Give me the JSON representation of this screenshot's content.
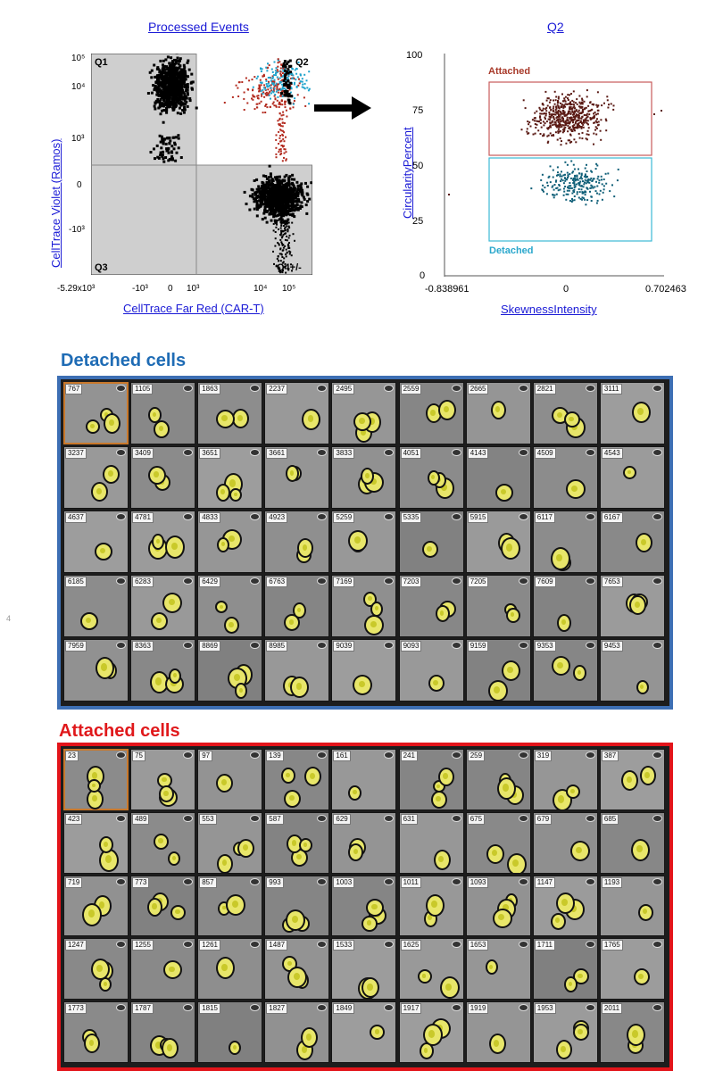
{
  "scatter_left": {
    "title": "Processed Events",
    "y_axis_label": "CellTrace Violet (Ramos)",
    "x_axis_label": "CellTrace Far Red (CAR-T)",
    "y_ticks": [
      "10⁵",
      "10⁴",
      "10³",
      "0",
      "-10³"
    ],
    "x_ticks": [
      "-5.29x10³",
      "-10³",
      "0",
      "10³",
      "10⁴",
      "10⁵"
    ],
    "quadrants": [
      "Q1",
      "Q2",
      "Q3",
      "Q4+/-"
    ],
    "colors": {
      "background": "#cfcfcf",
      "q2_background": "#ffffff",
      "events": "#000000",
      "attached": "#b22a1e",
      "detached": "#1ea3cc"
    }
  },
  "arrow": {
    "icon": "right-arrow-icon"
  },
  "scatter_right": {
    "title": "Q2",
    "y_axis_label": "CircularityPercent",
    "x_axis_label": "SkewnessIntensity",
    "y_ticks": [
      "100",
      "75",
      "50",
      "25",
      "0"
    ],
    "x_ticks": [
      "-0.838961",
      "0",
      "0.702463"
    ],
    "gates": {
      "attached": "Attached",
      "detached": "Detached"
    },
    "colors": {
      "attached": "#5a1a14",
      "attached_gate": "#c85a5a",
      "detached": "#0f5f78",
      "detached_gate": "#3bb9d6",
      "attached_label": "#a83a2a",
      "detached_label": "#2aa7cc"
    }
  },
  "side_page_number": "4",
  "detached": {
    "title": "Detached cells",
    "title_color": "#1f6cb5",
    "frame_color": "#3d6fb4",
    "ids": [
      "767",
      "1105",
      "1863",
      "2237",
      "2495",
      "2559",
      "2665",
      "2821",
      "3111",
      "3237",
      "3409",
      "3651",
      "3661",
      "3833",
      "4051",
      "4143",
      "4509",
      "4543",
      "4637",
      "4781",
      "4833",
      "4923",
      "5259",
      "5335",
      "5915",
      "6117",
      "6167",
      "6185",
      "6283",
      "6429",
      "6763",
      "7169",
      "7203",
      "7205",
      "7609",
      "7653",
      "7959",
      "8363",
      "8869",
      "8985",
      "9039",
      "9093",
      "9159",
      "9353",
      "9453"
    ]
  },
  "attached": {
    "title": "Attached cells",
    "title_color": "#e0181b",
    "frame_color": "#e3141a",
    "ids": [
      "23",
      "75",
      "97",
      "139",
      "161",
      "241",
      "259",
      "319",
      "387",
      "423",
      "489",
      "553",
      "587",
      "629",
      "631",
      "675",
      "679",
      "685",
      "719",
      "773",
      "857",
      "993",
      "1003",
      "1011",
      "1093",
      "1147",
      "1193",
      "1247",
      "1255",
      "1261",
      "1487",
      "1533",
      "1625",
      "1653",
      "1711",
      "1765",
      "1773",
      "1787",
      "1815",
      "1827",
      "1849",
      "1917",
      "1919",
      "1953",
      "2011"
    ]
  }
}
